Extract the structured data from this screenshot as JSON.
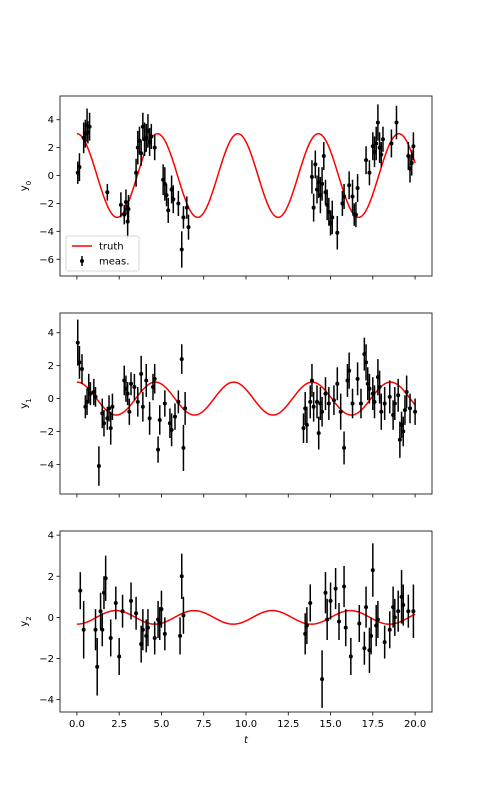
{
  "chart_data": [
    {
      "type": "line",
      "panel": "top",
      "ylabel_html": "y<tspan baseline-shift=\"sub\" font-size=\"7\">0</tspan>",
      "ylabel_text": "y0",
      "xlabel": "",
      "xlim": [
        -1.0,
        21.0
      ],
      "ylim": [
        -7.2,
        5.7
      ],
      "yticks": [
        -6,
        -4,
        -2,
        0,
        2,
        4
      ],
      "xticks": [
        0.0,
        2.5,
        5.0,
        7.5,
        10.0,
        12.5,
        15.0,
        17.5,
        20.0
      ],
      "show_xticklabels": false,
      "truth": {
        "amplitude": 3.0,
        "omega": 1.32,
        "phase": 1.571,
        "color": "#ff0000"
      },
      "legend": {
        "entries": [
          "truth",
          "meas."
        ],
        "position": "lower-left"
      },
      "points": [
        [
          0.05,
          0.2,
          0.8
        ],
        [
          0.15,
          0.6,
          1.0
        ],
        [
          0.4,
          2.7,
          1.1
        ],
        [
          0.5,
          3.0,
          1.0
        ],
        [
          0.6,
          3.6,
          1.2
        ],
        [
          0.75,
          3.5,
          1.0
        ],
        [
          0.65,
          3.1,
          0.8
        ],
        [
          1.8,
          -1.2,
          0.6
        ],
        [
          2.6,
          -2.1,
          0.9
        ],
        [
          2.8,
          -2.8,
          0.7
        ],
        [
          2.9,
          -1.9,
          0.9
        ],
        [
          3.0,
          -3.3,
          1.2
        ],
        [
          3.05,
          -2.4,
          1.0
        ],
        [
          3.5,
          0.2,
          1.0
        ],
        [
          3.6,
          2.0,
          1.2
        ],
        [
          3.7,
          2.5,
          1.0
        ],
        [
          3.8,
          1.6,
          0.9
        ],
        [
          3.9,
          3.5,
          1.0
        ],
        [
          4.0,
          2.6,
          1.2
        ],
        [
          4.1,
          2.7,
          1.0
        ],
        [
          4.2,
          3.2,
          1.2
        ],
        [
          4.3,
          2.4,
          1.0
        ],
        [
          4.4,
          2.8,
          0.9
        ],
        [
          4.6,
          2.0,
          0.9
        ],
        [
          5.1,
          -0.3,
          1.1
        ],
        [
          5.2,
          -0.6,
          1.2
        ],
        [
          5.3,
          -1.4,
          0.8
        ],
        [
          5.4,
          -2.5,
          0.9
        ],
        [
          5.6,
          -1.0,
          1.0
        ],
        [
          5.7,
          -1.7,
          1.0
        ],
        [
          6.0,
          -2.0,
          0.9
        ],
        [
          6.2,
          -5.3,
          1.3
        ],
        [
          6.3,
          -3.0,
          0.8
        ],
        [
          6.5,
          -2.3,
          0.8
        ],
        [
          6.6,
          -3.7,
          0.9
        ],
        [
          13.9,
          -0.1,
          1.2
        ],
        [
          14.0,
          -2.3,
          1.0
        ],
        [
          14.1,
          0.8,
          1.0
        ],
        [
          14.2,
          -1.0,
          1.0
        ],
        [
          14.3,
          -0.5,
          1.1
        ],
        [
          14.4,
          -1.4,
          1.3
        ],
        [
          14.5,
          -0.6,
          1.2
        ],
        [
          14.6,
          1.4,
          1.0
        ],
        [
          14.7,
          -1.2,
          0.9
        ],
        [
          14.8,
          -2.1,
          1.1
        ],
        [
          14.9,
          -2.6,
          1.0
        ],
        [
          15.0,
          -3.4,
          0.9
        ],
        [
          15.1,
          -3.0,
          1.2
        ],
        [
          15.4,
          -4.1,
          1.2
        ],
        [
          15.7,
          -2.0,
          0.9
        ],
        [
          15.8,
          -1.5,
          0.9
        ],
        [
          16.1,
          -0.7,
          1.0
        ],
        [
          16.3,
          -1.5,
          1.2
        ],
        [
          16.4,
          -2.8,
          0.8
        ],
        [
          16.5,
          -2.8,
          0.9
        ],
        [
          16.6,
          -0.9,
          1.0
        ],
        [
          17.1,
          1.1,
          1.0
        ],
        [
          17.3,
          0.2,
          0.9
        ],
        [
          17.5,
          2.1,
          1.0
        ],
        [
          17.6,
          1.7,
          1.1
        ],
        [
          17.7,
          2.3,
          1.2
        ],
        [
          17.8,
          3.8,
          1.3
        ],
        [
          17.9,
          2.0,
          1.1
        ],
        [
          18.0,
          1.5,
          0.9
        ],
        [
          18.1,
          2.6,
          0.9
        ],
        [
          18.6,
          2.3,
          1.0
        ],
        [
          18.9,
          3.8,
          1.2
        ],
        [
          19.6,
          1.4,
          1.0
        ],
        [
          19.7,
          0.5,
          1.0
        ],
        [
          19.8,
          0.9,
          0.9
        ],
        [
          19.9,
          2.1,
          1.0
        ]
      ]
    },
    {
      "type": "line",
      "panel": "middle",
      "ylabel_html": "y<tspan baseline-shift=\"sub\" font-size=\"7\">1</tspan>",
      "ylabel_text": "y1",
      "xlabel": "",
      "xlim": [
        -1.0,
        21.0
      ],
      "ylim": [
        -5.8,
        5.2
      ],
      "yticks": [
        -4,
        -2,
        0,
        2,
        4
      ],
      "xticks": [
        0.0,
        2.5,
        5.0,
        7.5,
        10.0,
        12.5,
        15.0,
        17.5,
        20.0
      ],
      "show_xticklabels": false,
      "truth": {
        "amplitude": 1.0,
        "omega": 1.355,
        "phase": 1.571,
        "color": "#ff0000"
      },
      "legend": null,
      "points": [
        [
          0.05,
          3.4,
          1.4
        ],
        [
          0.15,
          2.2,
          1.0
        ],
        [
          0.3,
          1.8,
          0.9
        ],
        [
          0.5,
          -0.5,
          0.7
        ],
        [
          0.6,
          -0.2,
          0.8
        ],
        [
          0.7,
          0.6,
          0.9
        ],
        [
          0.8,
          0.3,
          0.7
        ],
        [
          1.0,
          0.4,
          0.8
        ],
        [
          1.1,
          0.1,
          0.6
        ],
        [
          1.3,
          -4.1,
          1.2
        ],
        [
          1.5,
          -0.9,
          0.9
        ],
        [
          1.6,
          -1.5,
          0.8
        ],
        [
          1.8,
          -1.2,
          0.7
        ],
        [
          1.9,
          -0.6,
          0.8
        ],
        [
          2.0,
          -1.8,
          1.0
        ],
        [
          2.1,
          -0.5,
          0.8
        ],
        [
          2.8,
          1.1,
          0.9
        ],
        [
          2.9,
          0.6,
          0.8
        ],
        [
          3.0,
          0.3,
          0.7
        ],
        [
          3.1,
          -0.8,
          0.8
        ],
        [
          3.2,
          0.9,
          0.7
        ],
        [
          3.4,
          0.7,
          0.8
        ],
        [
          3.6,
          -0.2,
          0.9
        ],
        [
          3.8,
          1.5,
          1.1
        ],
        [
          3.9,
          -0.5,
          0.9
        ],
        [
          4.1,
          1.1,
          1.0
        ],
        [
          4.3,
          -1.2,
          1.0
        ],
        [
          4.5,
          0.7,
          0.8
        ],
        [
          4.6,
          1.2,
          0.9
        ],
        [
          4.8,
          -3.1,
          0.8
        ],
        [
          4.9,
          -1.3,
          0.9
        ],
        [
          5.2,
          -0.3,
          0.8
        ],
        [
          5.5,
          -1.5,
          0.9
        ],
        [
          5.6,
          -1.9,
          1.0
        ],
        [
          5.8,
          -1.1,
          0.8
        ],
        [
          6.0,
          -0.2,
          0.7
        ],
        [
          6.2,
          2.4,
          0.9
        ],
        [
          6.3,
          -3.0,
          1.4
        ],
        [
          6.4,
          -0.6,
          1.0
        ],
        [
          13.4,
          -1.8,
          0.9
        ],
        [
          13.5,
          -0.6,
          1.0
        ],
        [
          13.6,
          -1.6,
          1.1
        ],
        [
          13.8,
          -0.2,
          1.0
        ],
        [
          13.9,
          1.1,
          1.0
        ],
        [
          14.0,
          -0.5,
          0.9
        ],
        [
          14.2,
          -0.2,
          1.0
        ],
        [
          14.3,
          -2.1,
          1.0
        ],
        [
          14.4,
          -0.3,
          1.0
        ],
        [
          14.5,
          -0.8,
          0.9
        ],
        [
          14.7,
          0.3,
          1.0
        ],
        [
          14.9,
          -0.3,
          1.0
        ],
        [
          15.2,
          -0.1,
          0.9
        ],
        [
          15.4,
          0.9,
          1.0
        ],
        [
          15.6,
          -0.8,
          1.1
        ],
        [
          15.8,
          -3.0,
          1.0
        ],
        [
          16.0,
          1.1,
          1.0
        ],
        [
          16.1,
          1.7,
          1.1
        ],
        [
          16.3,
          -0.3,
          0.9
        ],
        [
          16.6,
          1.2,
          1.0
        ],
        [
          16.8,
          -0.3,
          0.9
        ],
        [
          17.0,
          2.7,
          1.0
        ],
        [
          17.1,
          2.2,
          1.1
        ],
        [
          17.2,
          0.9,
          1.0
        ],
        [
          17.3,
          0.6,
          0.9
        ],
        [
          17.5,
          0.3,
          1.0
        ],
        [
          17.6,
          -0.2,
          1.0
        ],
        [
          17.8,
          1.3,
          1.1
        ],
        [
          17.9,
          0.7,
          1.0
        ],
        [
          18.0,
          -0.8,
          1.1
        ],
        [
          18.2,
          -0.3,
          1.0
        ],
        [
          18.5,
          0.1,
          1.0
        ],
        [
          18.7,
          -1.0,
          0.9
        ],
        [
          18.8,
          -0.3,
          1.0
        ],
        [
          19.0,
          0.2,
          1.0
        ],
        [
          19.1,
          -2.5,
          1.1
        ],
        [
          19.2,
          -1.6,
          0.8
        ],
        [
          19.3,
          -2.0,
          0.9
        ],
        [
          19.4,
          -0.7,
          0.9
        ],
        [
          19.5,
          0.4,
          1.0
        ],
        [
          19.7,
          -0.6,
          0.9
        ],
        [
          20.0,
          -0.8,
          0.8
        ]
      ]
    },
    {
      "type": "line",
      "panel": "bottom",
      "ylabel_html": "y<tspan baseline-shift=\"sub\" font-size=\"7\">2</tspan>",
      "ylabel_text": "y2",
      "xlabel_html": "<tspan font-style=\"italic\">t</tspan>",
      "xlabel_text": "t",
      "xlim": [
        -1.0,
        21.0
      ],
      "ylim": [
        -4.6,
        4.2
      ],
      "yticks": [
        -4,
        -2,
        0,
        2,
        4
      ],
      "xticks": [
        0.0,
        2.5,
        5.0,
        7.5,
        10.0,
        12.5,
        15.0,
        17.5,
        20.0
      ],
      "xticklabels": [
        "0.0",
        "2.5",
        "5.0",
        "7.5",
        "10.0",
        "12.5",
        "15.0",
        "17.5",
        "20.0"
      ],
      "show_xticklabels": true,
      "truth": {
        "amplitude": 0.33,
        "omega": 1.36,
        "phase": -1.57,
        "color": "#ff0000"
      },
      "legend": null,
      "points": [
        [
          0.2,
          1.3,
          0.9
        ],
        [
          0.4,
          -0.6,
          1.4
        ],
        [
          1.1,
          -0.6,
          1.0
        ],
        [
          1.2,
          -2.4,
          1.4
        ],
        [
          1.4,
          0.3,
          0.9
        ],
        [
          1.5,
          -0.6,
          0.8
        ],
        [
          1.6,
          1.2,
          0.8
        ],
        [
          1.7,
          1.9,
          1.1
        ],
        [
          2.0,
          -1.0,
          0.9
        ],
        [
          2.3,
          0.7,
          0.8
        ],
        [
          2.5,
          -1.9,
          0.9
        ],
        [
          2.7,
          0.3,
          0.8
        ],
        [
          3.2,
          0.8,
          0.9
        ],
        [
          3.5,
          0.2,
          0.8
        ],
        [
          3.8,
          -1.3,
          0.9
        ],
        [
          3.9,
          -0.6,
          1.0
        ],
        [
          4.1,
          -0.9,
          0.8
        ],
        [
          4.2,
          -0.5,
          0.9
        ],
        [
          4.6,
          -1.0,
          0.8
        ],
        [
          4.8,
          -0.1,
          0.9
        ],
        [
          4.9,
          -0.3,
          0.8
        ],
        [
          5.0,
          0.4,
          0.9
        ],
        [
          5.2,
          -0.8,
          0.8
        ],
        [
          6.1,
          -0.9,
          0.9
        ],
        [
          6.2,
          2.0,
          1.1
        ],
        [
          6.3,
          0.1,
          0.9
        ],
        [
          13.5,
          -0.8,
          1.0
        ],
        [
          13.6,
          -0.4,
          0.9
        ],
        [
          13.8,
          0.7,
          0.9
        ],
        [
          14.5,
          -3.0,
          1.4
        ],
        [
          14.7,
          1.2,
          1.0
        ],
        [
          14.8,
          -0.1,
          1.0
        ],
        [
          15.0,
          0.8,
          0.9
        ],
        [
          15.3,
          1.4,
          1.0
        ],
        [
          15.5,
          -0.2,
          0.9
        ],
        [
          15.8,
          1.5,
          1.0
        ],
        [
          15.9,
          -0.5,
          0.9
        ],
        [
          16.2,
          -1.9,
          0.9
        ],
        [
          16.7,
          -0.3,
          0.9
        ],
        [
          17.0,
          -1.5,
          0.8
        ],
        [
          17.1,
          0.5,
          1.0
        ],
        [
          17.3,
          -1.6,
          1.1
        ],
        [
          17.4,
          -0.9,
          0.9
        ],
        [
          17.5,
          2.3,
          1.3
        ],
        [
          17.7,
          -0.4,
          1.0
        ],
        [
          17.8,
          -0.1,
          0.9
        ],
        [
          18.2,
          -1.2,
          0.8
        ],
        [
          18.5,
          -0.6,
          0.9
        ],
        [
          18.7,
          0.5,
          1.0
        ],
        [
          18.8,
          0.0,
          0.9
        ],
        [
          19.0,
          0.3,
          1.0
        ],
        [
          19.2,
          1.0,
          1.3
        ],
        [
          19.3,
          0.6,
          1.0
        ],
        [
          19.6,
          0.3,
          0.8
        ],
        [
          19.9,
          0.3,
          1.3
        ]
      ]
    }
  ]
}
